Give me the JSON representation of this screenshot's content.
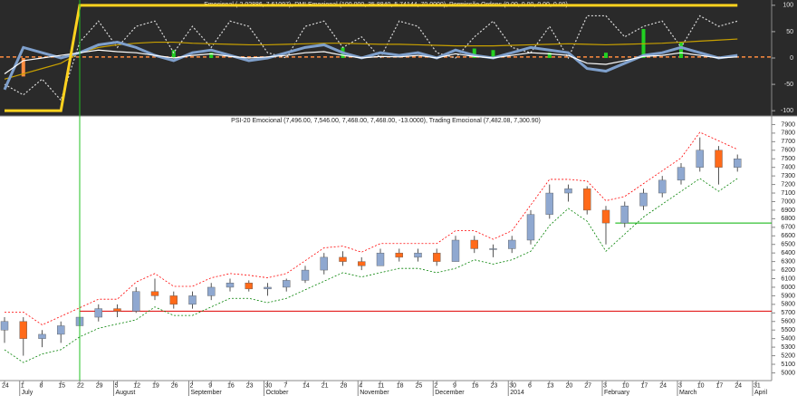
{
  "chart_data": [
    {
      "type": "line",
      "title": "Emocional (-2.02886, 7.61097), DMI Emocional (100.000, 35.8840, 5.74144, 70.0000), Permissão Ordens (0.00, 0.00, 0.00, 0.00)",
      "ylim": [
        -110,
        110
      ],
      "yticks": [
        -100,
        -50,
        0,
        50,
        100
      ],
      "reference_line": {
        "value": 2,
        "color": "#ff8c40",
        "style": "dashed"
      },
      "histogram": {
        "up_color": "#22d022",
        "down_color": "#ff8c40",
        "values": [
          0,
          -35,
          0,
          0,
          0,
          0,
          0,
          0,
          0,
          15,
          0,
          10,
          0,
          0,
          0,
          0,
          0,
          0,
          20,
          0,
          0,
          0,
          0,
          0,
          0,
          18,
          15,
          0,
          0,
          10,
          0,
          0,
          10,
          0,
          55,
          0,
          30,
          0,
          0,
          0,
          null
        ]
      },
      "series": [
        {
          "color": "#d8d8d8",
          "style": "dotted",
          "values": [
            -50,
            -70,
            -40,
            -80,
            30,
            70,
            20,
            60,
            70,
            10,
            60,
            20,
            70,
            60,
            10,
            0,
            60,
            70,
            20,
            40,
            0,
            70,
            60,
            10,
            0,
            40,
            70,
            20,
            10,
            60,
            0,
            80,
            80,
            40,
            60,
            70,
            20,
            80,
            60,
            70,
            null
          ]
        },
        {
          "color": "#c8a000",
          "style": "thin",
          "values": [
            -40,
            -30,
            -20,
            -10,
            10,
            20,
            25,
            28,
            30,
            30,
            28,
            27,
            26,
            25,
            25,
            26,
            27,
            28,
            28,
            27,
            26,
            26,
            25,
            24,
            23,
            23,
            23,
            24,
            25,
            26,
            27,
            26,
            25,
            26,
            27,
            28,
            30,
            32,
            34,
            36,
            null
          ]
        },
        {
          "color": "#7fa0cc",
          "style": "thick",
          "values": [
            -60,
            20,
            10,
            0,
            10,
            25,
            30,
            20,
            5,
            -5,
            10,
            15,
            5,
            -5,
            0,
            10,
            20,
            25,
            10,
            0,
            10,
            5,
            10,
            0,
            15,
            5,
            0,
            10,
            20,
            15,
            10,
            -20,
            -25,
            -10,
            5,
            10,
            20,
            10,
            0,
            5,
            null
          ]
        },
        {
          "color": "#ffffff",
          "style": "thin",
          "values": [
            -30,
            -5,
            0,
            5,
            10,
            15,
            12,
            10,
            5,
            0,
            5,
            8,
            3,
            0,
            2,
            5,
            10,
            12,
            5,
            0,
            3,
            2,
            5,
            0,
            8,
            3,
            0,
            5,
            10,
            8,
            5,
            -10,
            -12,
            -5,
            3,
            5,
            10,
            5,
            0,
            2,
            null
          ]
        },
        {
          "color": "#ffd21e",
          "style": "thick",
          "values": [
            -100,
            -100,
            -100,
            -100,
            100,
            100,
            100,
            100,
            100,
            100,
            100,
            100,
            100,
            100,
            100,
            100,
            100,
            100,
            100,
            100,
            100,
            100,
            100,
            100,
            100,
            100,
            100,
            100,
            100,
            100,
            100,
            100,
            100,
            100,
            100,
            100,
            100,
            100,
            100,
            100,
            null
          ]
        }
      ]
    },
    {
      "type": "candlestick",
      "title": "PSI-20 Emocional (7,496.00, 7,546.00, 7,468.00, 7,468.00, -13.0000), Trading Emocional (7,482.08, 7,300.90)",
      "categories": [
        "24",
        "1",
        "8",
        "15",
        "22",
        "29",
        "5",
        "12",
        "19",
        "26",
        "2",
        "9",
        "16",
        "23",
        "30",
        "7",
        "14",
        "21",
        "28",
        "4",
        "11",
        "18",
        "25",
        "2",
        "9",
        "16",
        "23",
        "30",
        "6",
        "13",
        "20",
        "27",
        "3",
        "10",
        "17",
        "24",
        "3",
        "10",
        "17",
        "24",
        "31"
      ],
      "month_labels": [
        null,
        "July",
        null,
        null,
        null,
        null,
        "August",
        null,
        null,
        null,
        "September",
        null,
        null,
        null,
        "October",
        null,
        null,
        null,
        null,
        "November",
        null,
        null,
        null,
        "December",
        null,
        null,
        null,
        "2014",
        null,
        null,
        null,
        null,
        "February",
        null,
        null,
        null,
        "March",
        null,
        null,
        null,
        "April"
      ],
      "open": [
        5500,
        5600,
        5400,
        5450,
        5550,
        5650,
        5750,
        5720,
        5950,
        5900,
        5800,
        5900,
        6000,
        6050,
        5980,
        6000,
        6080,
        6200,
        6350,
        6300,
        6250,
        6400,
        6350,
        6400,
        6300,
        6550,
        6450,
        6450,
        6550,
        6850,
        7100,
        7150,
        6900,
        6750,
        6950,
        7100,
        7250,
        7400,
        7600,
        7400,
        null
      ],
      "high": [
        5650,
        5650,
        5500,
        5600,
        5700,
        5800,
        5800,
        6000,
        6100,
        5950,
        5950,
        6050,
        6100,
        6080,
        6050,
        6100,
        6250,
        6400,
        6420,
        6350,
        6450,
        6450,
        6450,
        6450,
        6600,
        6600,
        6500,
        6600,
        6900,
        7200,
        7200,
        7180,
        6950,
        7000,
        7150,
        7300,
        7450,
        7750,
        7650,
        7550,
        null
      ],
      "low": [
        5350,
        5200,
        5300,
        5350,
        5500,
        5600,
        5650,
        5700,
        5850,
        5750,
        5750,
        5850,
        5950,
        5950,
        5900,
        5950,
        6050,
        6150,
        6250,
        6200,
        6250,
        6300,
        6300,
        6250,
        6300,
        6400,
        6350,
        6400,
        6500,
        6800,
        7000,
        6850,
        6500,
        6700,
        6900,
        7050,
        7200,
        7350,
        7200,
        7350,
        null
      ],
      "close": [
        5600,
        5400,
        5450,
        5550,
        5650,
        5750,
        5720,
        5950,
        5900,
        5800,
        5900,
        6000,
        6050,
        5980,
        6000,
        6080,
        6200,
        6350,
        6300,
        6250,
        6400,
        6350,
        6400,
        6300,
        6550,
        6450,
        6450,
        6550,
        6850,
        7100,
        7150,
        6900,
        6750,
        6950,
        7100,
        7250,
        7400,
        7600,
        7400,
        7500,
        null
      ],
      "up_color": "#8fa8d0",
      "down_color": "#ff6a1a",
      "bands": [
        {
          "color": "#ff0000",
          "values": [
            5710,
            5710,
            5560,
            5660,
            5760,
            5860,
            5860,
            6060,
            6160,
            6010,
            6010,
            6110,
            6160,
            6140,
            6110,
            6160,
            6310,
            6460,
            6480,
            6410,
            6510,
            6510,
            6510,
            6510,
            6660,
            6660,
            6560,
            6660,
            6960,
            7260,
            7260,
            7240,
            7010,
            7060,
            7210,
            7360,
            7510,
            7810,
            7710,
            7610,
            null
          ]
        },
        {
          "color": "#008000",
          "values": [
            5270,
            5120,
            5220,
            5270,
            5420,
            5520,
            5570,
            5620,
            5770,
            5670,
            5670,
            5770,
            5870,
            5870,
            5820,
            5870,
            5970,
            6070,
            6170,
            6120,
            6170,
            6220,
            6220,
            6170,
            6220,
            6320,
            6270,
            6320,
            6420,
            6720,
            6920,
            6770,
            6420,
            6620,
            6820,
            6970,
            7120,
            7270,
            7120,
            7270,
            null
          ]
        }
      ],
      "hlines": [
        {
          "value": 5720,
          "color": "#e00000"
        },
        {
          "value": 6750,
          "color": "#00b000"
        }
      ],
      "ylim": [
        4920,
        8000
      ],
      "yticks": [
        5000,
        5100,
        5200,
        5300,
        5400,
        5500,
        5600,
        5700,
        5800,
        5900,
        6000,
        6100,
        6200,
        6300,
        6400,
        6500,
        6600,
        6700,
        6800,
        6900,
        7000,
        7100,
        7200,
        7300,
        7400,
        7500,
        7600,
        7700,
        7800,
        7900
      ]
    }
  ]
}
